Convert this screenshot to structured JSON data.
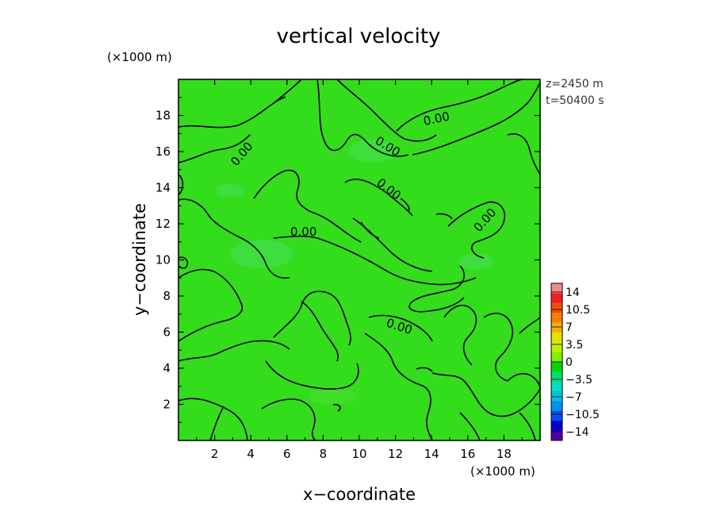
{
  "chart_data": {
    "type": "heatmap",
    "title": "vertical velocity",
    "xlabel": "x−coordinate",
    "ylabel": "y−coordinate",
    "x_unit": "(×1000 m)",
    "y_unit": "(×1000 m)",
    "xlim": [
      0,
      20
    ],
    "ylim": [
      0,
      20
    ],
    "x_ticks": [
      "2",
      "4",
      "6",
      "8",
      "10",
      "12",
      "14",
      "16",
      "18"
    ],
    "y_ticks": [
      "2",
      "4",
      "6",
      "8",
      "10",
      "12",
      "14",
      "16",
      "18"
    ],
    "annotations": [
      "z=2450 m",
      "t=50400 s"
    ],
    "contour_level": "0.00",
    "contour_labels": [
      "0.00",
      "0.00",
      "0.00",
      "0.00",
      "0.00",
      "0.00",
      "0.00"
    ],
    "field_description_value": "near zero across domain",
    "colorbar": {
      "ticks": [
        "14",
        "10.5",
        "7",
        "3.5",
        "0",
        "−3.5",
        "−7",
        "−10.5",
        "−14"
      ],
      "colors": [
        "#f08a8a",
        "#f02020",
        "#f05000",
        "#f08000",
        "#f0b000",
        "#e8e000",
        "#c0f000",
        "#80f000",
        "#00d800",
        "#00e070",
        "#00e0c0",
        "#00c0e0",
        "#0090f0",
        "#0050f0",
        "#0000d0",
        "#5000a0"
      ]
    },
    "grid": false
  }
}
